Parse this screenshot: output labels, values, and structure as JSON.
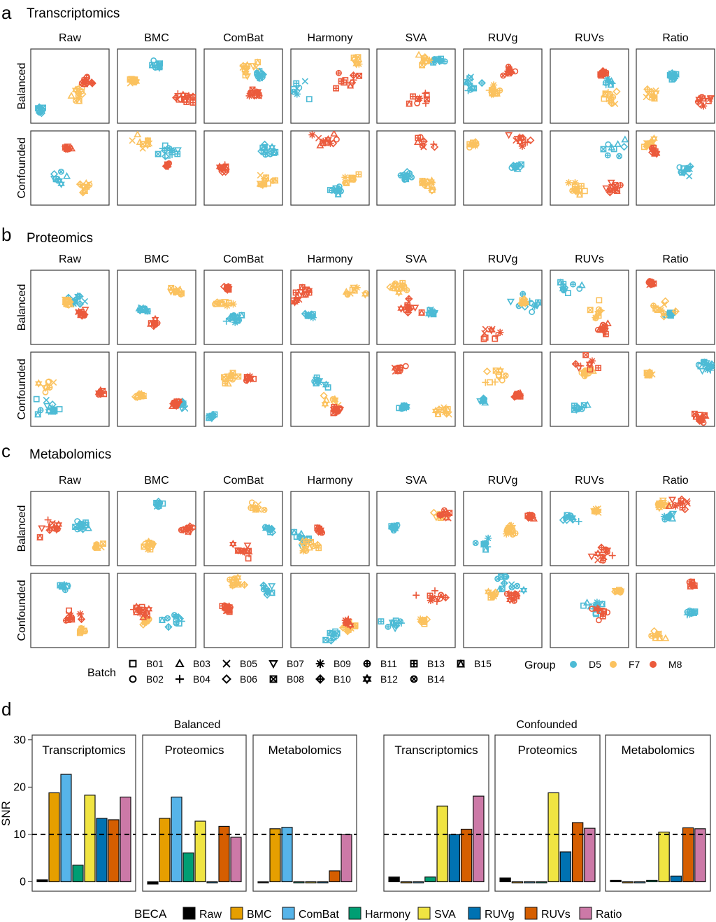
{
  "colors": {
    "D5": "#4dbbd5",
    "F7": "#fbc25f",
    "M8": "#eb5a3c",
    "frame": "#3a3a3a",
    "becas": {
      "Raw": "#000000",
      "BMC": "#e69f00",
      "ComBat": "#56b4e9",
      "Harmony": "#009e73",
      "SVA": "#f0e442",
      "RUVg": "#0072b2",
      "RUVs": "#d55e00",
      "Ratio": "#cc79a7"
    }
  },
  "panels": [
    {
      "letter": "a",
      "title": "Transcriptomics"
    },
    {
      "letter": "b",
      "title": "Proteomics"
    },
    {
      "letter": "c",
      "title": "Metabolomics"
    },
    {
      "letter": "d",
      "title": ""
    }
  ],
  "methods": [
    "Raw",
    "BMC",
    "ComBat",
    "Harmony",
    "SVA",
    "RUVg",
    "RUVs",
    "Ratio"
  ],
  "designs": [
    "Balanced",
    "Confounded"
  ],
  "legend": {
    "batch_title": "Batch",
    "batches": [
      {
        "label": "B01",
        "shape": "square-icon"
      },
      {
        "label": "B02",
        "shape": "circle-icon"
      },
      {
        "label": "B03",
        "shape": "triangle-icon"
      },
      {
        "label": "B04",
        "shape": "plus-icon"
      },
      {
        "label": "B05",
        "shape": "cross-icon"
      },
      {
        "label": "B06",
        "shape": "diamond-icon"
      },
      {
        "label": "B07",
        "shape": "triangle-down-icon"
      },
      {
        "label": "B08",
        "shape": "square-cross-icon"
      },
      {
        "label": "B09",
        "shape": "asterisk-icon"
      },
      {
        "label": "B10",
        "shape": "diamond-plus-icon"
      },
      {
        "label": "B11",
        "shape": "circle-plus-icon"
      },
      {
        "label": "B12",
        "shape": "star-of-david-icon"
      },
      {
        "label": "B13",
        "shape": "square-plus-icon"
      },
      {
        "label": "B14",
        "shape": "circle-cross-icon"
      },
      {
        "label": "B15",
        "shape": "square-triangle-icon"
      }
    ],
    "group_title": "Group",
    "groups": [
      "D5",
      "F7",
      "M8"
    ]
  },
  "chart_data": {
    "type": "bar",
    "ylabel": "SNR",
    "ylim": [
      -2,
      31
    ],
    "yticks": [
      0,
      10,
      20,
      30
    ],
    "reference_line": 10,
    "becas": [
      "Raw",
      "BMC",
      "ComBat",
      "Harmony",
      "SVA",
      "RUVg",
      "RUVs",
      "Ratio"
    ],
    "legend_title": "BECA",
    "groups": [
      {
        "design": "Balanced",
        "facets": [
          {
            "title": "Transcriptomics",
            "values": [
              0.4,
              18.8,
              22.7,
              3.5,
              18.3,
              13.4,
              13.1,
              17.9
            ]
          },
          {
            "title": "Proteomics",
            "values": [
              -0.5,
              13.4,
              17.9,
              6.1,
              12.8,
              -0.1,
              11.7,
              9.4
            ]
          },
          {
            "title": "Metabolomics",
            "values": [
              -0.2,
              11.2,
              11.5,
              -0.2,
              -0.2,
              -0.2,
              2.3,
              10.0
            ]
          }
        ]
      },
      {
        "design": "Confounded",
        "facets": [
          {
            "title": "Transcriptomics",
            "values": [
              1.0,
              -0.2,
              -0.1,
              1.0,
              16.0,
              10.0,
              11.1,
              18.1
            ]
          },
          {
            "title": "Proteomics",
            "values": [
              0.8,
              -0.1,
              -0.1,
              -0.1,
              18.8,
              6.3,
              12.5,
              11.3
            ]
          },
          {
            "title": "Metabolomics",
            "values": [
              0.3,
              -0.2,
              -0.2,
              0.3,
              10.5,
              1.2,
              11.4,
              11.2
            ]
          }
        ]
      }
    ]
  }
}
